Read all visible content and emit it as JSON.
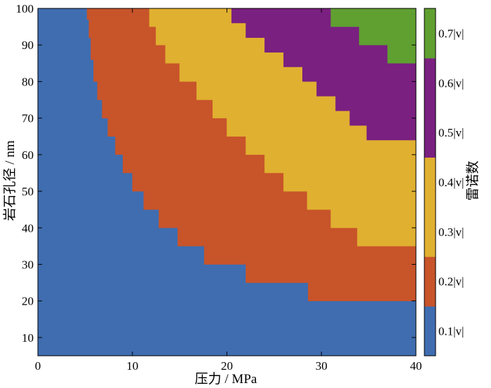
{
  "chart_data": {
    "type": "heatmap",
    "title": "",
    "xlabel": "压力 / MPa",
    "ylabel": "岩石孔径 / nm",
    "xlim": [
      0,
      40
    ],
    "ylim": [
      5,
      100
    ],
    "xticks": [
      "0",
      "10",
      "20",
      "30",
      "40"
    ],
    "yticks": [
      "10",
      "20",
      "30",
      "40",
      "50",
      "60",
      "70",
      "80",
      "90",
      "100"
    ],
    "x_tick_values": [
      0,
      10,
      20,
      30,
      40
    ],
    "y_tick_values": [
      10,
      20,
      30,
      40,
      50,
      60,
      70,
      80,
      90,
      100
    ],
    "colorbar": {
      "label": "雷诺数",
      "levels": [
        {
          "label": "0.1|v|",
          "color": "#3f6db0"
        },
        {
          "label": "0.2|v|",
          "color": "#c8542a"
        },
        {
          "label": "0.3|v|",
          "color": "#e0b030"
        },
        {
          "label": "0.4|v|",
          "color": "#e0b030"
        },
        {
          "label": "0.5|v|",
          "color": "#7a2080"
        },
        {
          "label": "0.6|v|",
          "color": "#7a2080"
        },
        {
          "label": "0.7|v|",
          "color": "#5fa030"
        }
      ]
    },
    "regions": [
      {
        "color": "#3f6db0",
        "boundary": []
      },
      {
        "color": "#c8542a",
        "boundary": [
          [
            5.2,
            100
          ],
          [
            5.2,
            97
          ],
          [
            5.4,
            97
          ],
          [
            5.4,
            92
          ],
          [
            5.6,
            92
          ],
          [
            5.6,
            86
          ],
          [
            5.9,
            86
          ],
          [
            5.9,
            80
          ],
          [
            6.3,
            80
          ],
          [
            6.3,
            75
          ],
          [
            6.8,
            75
          ],
          [
            6.8,
            70
          ],
          [
            7.4,
            70
          ],
          [
            7.4,
            65
          ],
          [
            8.2,
            65
          ],
          [
            8.2,
            60
          ],
          [
            9.0,
            60
          ],
          [
            9.0,
            55
          ],
          [
            10.0,
            55
          ],
          [
            10.0,
            50
          ],
          [
            11.2,
            50
          ],
          [
            11.2,
            45
          ],
          [
            12.8,
            45
          ],
          [
            12.8,
            40
          ],
          [
            14.8,
            40
          ],
          [
            14.8,
            35
          ],
          [
            17.6,
            35
          ],
          [
            17.6,
            30
          ],
          [
            22.0,
            30
          ],
          [
            22.0,
            25
          ],
          [
            28.6,
            25
          ],
          [
            28.6,
            20
          ],
          [
            40,
            20
          ],
          [
            40,
            100
          ]
        ]
      },
      {
        "color": "#e0b030",
        "boundary": [
          [
            11.8,
            100
          ],
          [
            11.8,
            95
          ],
          [
            12.5,
            95
          ],
          [
            12.5,
            90
          ],
          [
            13.5,
            90
          ],
          [
            13.5,
            85
          ],
          [
            15.0,
            85
          ],
          [
            15.0,
            80
          ],
          [
            16.8,
            80
          ],
          [
            16.8,
            75
          ],
          [
            18.5,
            75
          ],
          [
            18.5,
            70
          ],
          [
            20.0,
            70
          ],
          [
            20.0,
            65
          ],
          [
            22.0,
            65
          ],
          [
            22.0,
            60
          ],
          [
            24.0,
            60
          ],
          [
            24.0,
            55
          ],
          [
            26.0,
            55
          ],
          [
            26.0,
            50
          ],
          [
            28.5,
            50
          ],
          [
            28.5,
            45
          ],
          [
            31.0,
            45
          ],
          [
            31.0,
            40
          ],
          [
            33.8,
            40
          ],
          [
            33.8,
            35
          ],
          [
            40,
            35
          ],
          [
            40,
            100
          ]
        ]
      },
      {
        "color": "#7a2080",
        "boundary": [
          [
            20.5,
            100
          ],
          [
            20.5,
            96
          ],
          [
            22.0,
            96
          ],
          [
            22.0,
            92
          ],
          [
            24.0,
            92
          ],
          [
            24.0,
            88
          ],
          [
            26.0,
            88
          ],
          [
            26.0,
            84
          ],
          [
            28.0,
            84
          ],
          [
            28.0,
            80
          ],
          [
            29.5,
            80
          ],
          [
            29.5,
            76
          ],
          [
            31.5,
            76
          ],
          [
            31.5,
            72
          ],
          [
            33.0,
            72
          ],
          [
            33.0,
            68
          ],
          [
            34.8,
            68
          ],
          [
            34.8,
            64
          ],
          [
            40,
            64
          ],
          [
            40,
            100
          ]
        ]
      },
      {
        "color": "#5fa030",
        "boundary": [
          [
            31.0,
            100
          ],
          [
            31.0,
            95
          ],
          [
            34.0,
            95
          ],
          [
            34.0,
            90
          ],
          [
            37.0,
            90
          ],
          [
            37.0,
            85
          ],
          [
            40,
            85
          ],
          [
            40,
            100
          ]
        ]
      }
    ]
  }
}
